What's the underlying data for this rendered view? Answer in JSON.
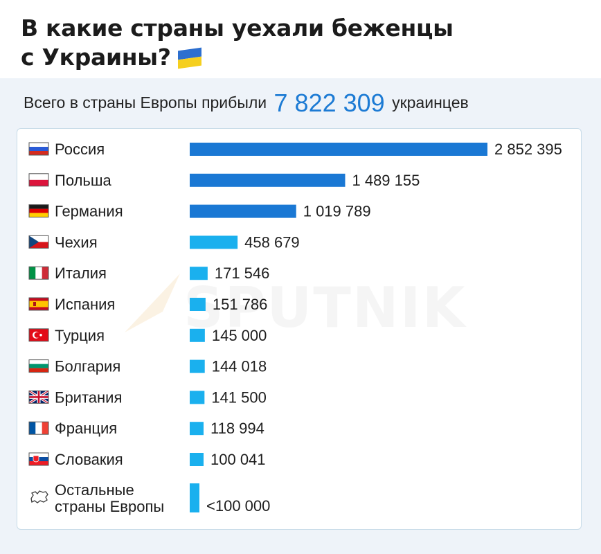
{
  "header": {
    "title_line1": "В какие страны уехали беженцы",
    "title_line2": "с Украины?"
  },
  "summary": {
    "prefix": "Всего в страны Европы прибыли",
    "total": "7 822 309",
    "suffix": "украинцев"
  },
  "watermark": {
    "text": "SPUTNIK"
  },
  "colors": {
    "bar_large": "#1a78d4",
    "bar_small": "#1ab0ee",
    "accent": "#1d7bd4"
  },
  "chart_data": {
    "type": "bar",
    "orientation": "horizontal",
    "title": "В какие страны уехали беженцы с Украины?",
    "categories": [
      "Россия",
      "Польша",
      "Германия",
      "Чехия",
      "Италия",
      "Испания",
      "Турция",
      "Болгария",
      "Британия",
      "Франция",
      "Словакия",
      "Остальные страны Европы"
    ],
    "values": [
      2852395,
      1489155,
      1019789,
      458679,
      171546,
      151786,
      145000,
      144018,
      141500,
      118994,
      100041,
      100000
    ],
    "value_labels": [
      "2 852 395",
      "1 489 155",
      "1 019 789",
      "458 679",
      "171 546",
      "151 786",
      "145 000",
      "144 018",
      "141 500",
      "118 994",
      "100 041",
      "<100 000"
    ],
    "flags": [
      "russia-flag-icon",
      "poland-flag-icon",
      "germany-flag-icon",
      "czechia-flag-icon",
      "italy-flag-icon",
      "spain-flag-icon",
      "turkey-flag-icon",
      "bulgaria-flag-icon",
      "uk-flag-icon",
      "france-flag-icon",
      "slovakia-flag-icon",
      "europe-map-icon"
    ],
    "grid": false,
    "legend": "none"
  }
}
